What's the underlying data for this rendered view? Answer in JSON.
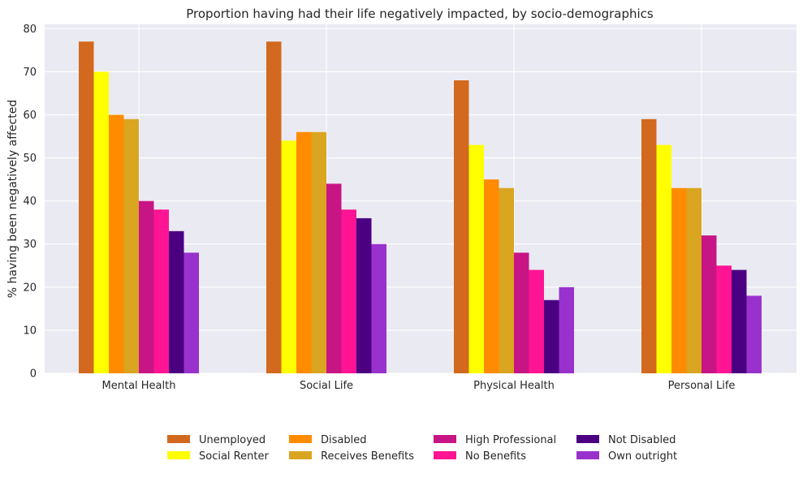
{
  "chart_data": {
    "type": "bar",
    "title": "Proportion having had their life negatively impacted, by socio-demographics",
    "xlabel": "",
    "ylabel": "% having been negatively affected",
    "ylim": [
      0,
      81
    ],
    "yticks": [
      0,
      10,
      20,
      30,
      40,
      50,
      60,
      70,
      80
    ],
    "grid": true,
    "legend_position": "bottom-center",
    "categories": [
      "Mental Health",
      "Social Life",
      "Physical Health",
      "Personal Life"
    ],
    "series": [
      {
        "name": "Unemployed",
        "color": "#d2691e",
        "values": [
          77,
          77,
          68,
          59
        ]
      },
      {
        "name": "Social Renter",
        "color": "#ffff00",
        "values": [
          70,
          54,
          53,
          53
        ]
      },
      {
        "name": "Disabled",
        "color": "#ff8c00",
        "values": [
          60,
          56,
          45,
          43
        ]
      },
      {
        "name": "Receives Benefits",
        "color": "#daa520",
        "values": [
          59,
          56,
          43,
          43
        ]
      },
      {
        "name": "High Professional",
        "color": "#c71585",
        "values": [
          40,
          44,
          28,
          32
        ]
      },
      {
        "name": "No Benefits",
        "color": "#ff1493",
        "values": [
          38,
          38,
          24,
          25
        ]
      },
      {
        "name": "Not Disabled",
        "color": "#4b0082",
        "values": [
          33,
          36,
          17,
          24
        ]
      },
      {
        "name": "Own outright",
        "color": "#9932cc",
        "values": [
          28,
          30,
          20,
          18
        ]
      }
    ]
  }
}
